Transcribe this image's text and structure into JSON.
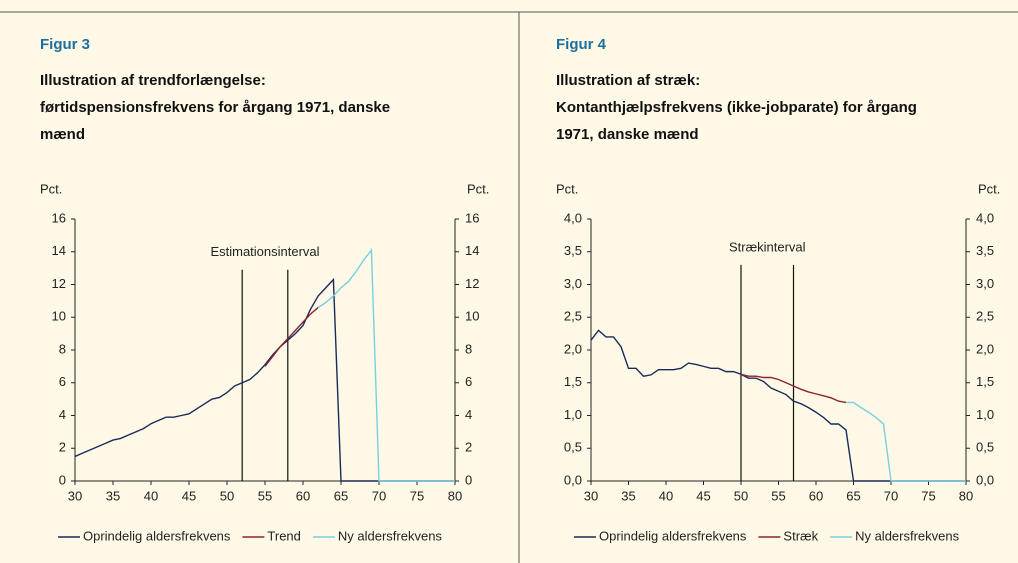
{
  "chart_data": [
    {
      "type": "line",
      "figure_label": "Figur 3",
      "title": [
        "Illustration af trendforlængelse:",
        "førtidspensionsfrekvens for årgang 1971, danske",
        "mænd"
      ],
      "ylabel": "Pct.",
      "y2label": "Pct.",
      "x": [
        30,
        31,
        32,
        33,
        34,
        35,
        36,
        37,
        38,
        39,
        40,
        41,
        42,
        43,
        44,
        45,
        46,
        47,
        48,
        49,
        50,
        51,
        52,
        53,
        54,
        55,
        56,
        57,
        58,
        59,
        60,
        61,
        62,
        63,
        64,
        65,
        66,
        67,
        68,
        69,
        70,
        71,
        72,
        73,
        74,
        75,
        76,
        77,
        78,
        79,
        80
      ],
      "xlim": [
        30,
        80
      ],
      "xticks": [
        30,
        35,
        40,
        45,
        50,
        55,
        60,
        65,
        70,
        75,
        80
      ],
      "ylim": [
        0,
        16
      ],
      "yticks": [
        0,
        2,
        4,
        6,
        8,
        10,
        12,
        14,
        16
      ],
      "y2lim": [
        0,
        16
      ],
      "y2ticks": [
        0,
        2,
        4,
        6,
        8,
        10,
        12,
        14,
        16
      ],
      "series": [
        {
          "name": "Oprindelig aldersfrekvens",
          "color": "#1b2a5c",
          "values": [
            1.5,
            1.7,
            1.9,
            2.1,
            2.3,
            2.5,
            2.6,
            2.8,
            3.0,
            3.2,
            3.5,
            3.7,
            3.9,
            3.9,
            4.0,
            4.1,
            4.4,
            4.7,
            5.0,
            5.1,
            5.4,
            5.8,
            6.0,
            6.2,
            6.6,
            7.1,
            7.7,
            8.2,
            8.6,
            9.0,
            9.5,
            10.5,
            11.3,
            11.8,
            12.3,
            0,
            0,
            0,
            0,
            0,
            0,
            0,
            0,
            0,
            0,
            0,
            0,
            0,
            0,
            0,
            0
          ]
        },
        {
          "name": "Trend",
          "color": "#8b2232",
          "values": [
            null,
            null,
            null,
            null,
            null,
            null,
            null,
            null,
            null,
            null,
            null,
            null,
            null,
            null,
            null,
            null,
            null,
            null,
            null,
            null,
            null,
            null,
            null,
            null,
            null,
            7.0,
            7.6,
            8.2,
            8.7,
            9.2,
            9.7,
            10.2,
            10.6,
            null,
            null,
            null,
            null,
            null,
            null,
            null,
            null,
            null,
            null,
            null,
            null,
            null,
            null,
            null,
            null,
            null,
            null
          ]
        },
        {
          "name": "Ny aldersfrekvens",
          "color": "#7ccde3",
          "values": [
            null,
            null,
            null,
            null,
            null,
            null,
            null,
            null,
            null,
            null,
            null,
            null,
            null,
            null,
            null,
            null,
            null,
            null,
            null,
            null,
            null,
            null,
            null,
            null,
            null,
            null,
            null,
            null,
            null,
            null,
            null,
            null,
            10.6,
            10.9,
            11.3,
            11.8,
            12.2,
            12.8,
            13.5,
            14.1,
            0,
            0,
            0,
            0,
            0,
            0,
            0,
            0,
            0,
            0,
            0
          ]
        }
      ],
      "annotation": {
        "text": "Estimationsinterval",
        "x": [
          52,
          58
        ],
        "ytop": 12.9
      }
    },
    {
      "type": "line",
      "figure_label": "Figur 4",
      "title": [
        "Illustration af stræk:",
        "Kontanthjælpsfrekvens (ikke-jobparate) for årgang",
        "1971, danske mænd"
      ],
      "ylabel": "Pct.",
      "y2label": "Pct.",
      "x": [
        30,
        31,
        32,
        33,
        34,
        35,
        36,
        37,
        38,
        39,
        40,
        41,
        42,
        43,
        44,
        45,
        46,
        47,
        48,
        49,
        50,
        51,
        52,
        53,
        54,
        55,
        56,
        57,
        58,
        59,
        60,
        61,
        62,
        63,
        64,
        65,
        66,
        67,
        68,
        69,
        70,
        71,
        72,
        73,
        74,
        75,
        76,
        77,
        78,
        79,
        80
      ],
      "xlim": [
        30,
        80
      ],
      "xticks": [
        30,
        35,
        40,
        45,
        50,
        55,
        60,
        65,
        70,
        75,
        80
      ],
      "ylim": [
        0,
        4
      ],
      "yticks": [
        {
          "value": 0,
          "label": "0,0"
        },
        {
          "value": 0.5,
          "label": "0,5"
        },
        {
          "value": 1,
          "label": "1,0"
        },
        {
          "value": 1.5,
          "label": "1,5"
        },
        {
          "value": 2,
          "label": "2,0"
        },
        {
          "value": 2.5,
          "label": "2,5"
        },
        {
          "value": 3,
          "label": "3,0"
        },
        {
          "value": 3.5,
          "label": "3,5"
        },
        {
          "value": 4,
          "label": "4,0"
        }
      ],
      "y2lim": [
        0,
        4
      ],
      "y2ticks": [
        {
          "value": 0,
          "label": "0,0"
        },
        {
          "value": 0.5,
          "label": "0,5"
        },
        {
          "value": 1,
          "label": "1,0"
        },
        {
          "value": 1.5,
          "label": "1,5"
        },
        {
          "value": 2,
          "label": "2,0"
        },
        {
          "value": 2.5,
          "label": "2,5"
        },
        {
          "value": 3,
          "label": "3,0"
        },
        {
          "value": 3.5,
          "label": "3,5"
        },
        {
          "value": 4,
          "label": "4,0"
        }
      ],
      "series": [
        {
          "name": "Oprindelig aldersfrekvens",
          "color": "#1b2a5c",
          "values": [
            2.15,
            2.3,
            2.2,
            2.2,
            2.05,
            1.72,
            1.72,
            1.6,
            1.62,
            1.7,
            1.7,
            1.7,
            1.72,
            1.8,
            1.78,
            1.75,
            1.72,
            1.72,
            1.67,
            1.67,
            1.63,
            1.57,
            1.57,
            1.52,
            1.42,
            1.37,
            1.32,
            1.22,
            1.18,
            1.12,
            1.05,
            0.97,
            0.87,
            0.87,
            0.78,
            0,
            0,
            0,
            0,
            0,
            0,
            0,
            0,
            0,
            0,
            0,
            0,
            0,
            0,
            0,
            0
          ]
        },
        {
          "name": "Stræk",
          "color": "#8b2232",
          "values": [
            null,
            null,
            null,
            null,
            null,
            null,
            null,
            null,
            null,
            null,
            null,
            null,
            null,
            null,
            null,
            null,
            null,
            null,
            null,
            null,
            1.63,
            1.6,
            1.6,
            1.58,
            1.58,
            1.55,
            1.5,
            1.45,
            1.4,
            1.36,
            1.33,
            1.3,
            1.27,
            1.22,
            1.2,
            null,
            null,
            null,
            null,
            null,
            null,
            null,
            null,
            null,
            null,
            null,
            null,
            null,
            null,
            null,
            null
          ]
        },
        {
          "name": "Ny aldersfrekvens",
          "color": "#7ccde3",
          "values": [
            null,
            null,
            null,
            null,
            null,
            null,
            null,
            null,
            null,
            null,
            null,
            null,
            null,
            null,
            null,
            null,
            null,
            null,
            null,
            null,
            null,
            null,
            null,
            null,
            null,
            null,
            null,
            null,
            null,
            null,
            null,
            null,
            null,
            null,
            1.2,
            1.2,
            1.12,
            1.05,
            0.97,
            0.87,
            0,
            0,
            0,
            0,
            0,
            0,
            0,
            0,
            0,
            0,
            0
          ]
        }
      ],
      "annotation": {
        "text": "Strækinterval",
        "x": [
          50,
          57
        ],
        "ytop": 3.3
      }
    }
  ]
}
